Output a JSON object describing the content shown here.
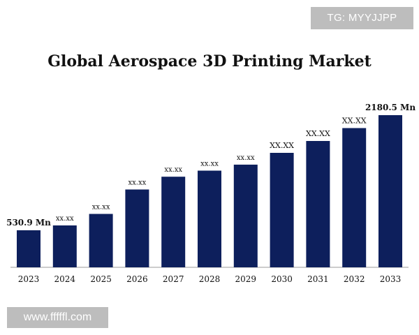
{
  "watermarks": {
    "top": "TG: MYYJJPP",
    "bottom": "www.fffffl.com"
  },
  "chart_data": {
    "type": "bar",
    "title": "Global Aerospace 3D Printing Market",
    "xlabel": "",
    "ylabel": "",
    "categories": [
      "2023",
      "2024",
      "2025",
      "2026",
      "2027",
      "2028",
      "2029",
      "2030",
      "2031",
      "2032",
      "2033"
    ],
    "values": [
      530.9,
      600,
      765,
      1115,
      1298,
      1385,
      1471,
      1640,
      1810,
      1995,
      2180.5
    ],
    "data_labels": [
      "530.9 Mn",
      "xx.xx",
      "xx.xx",
      "xx.xx",
      "xx.xx",
      "xx.xx",
      "xx.xx",
      "XX.XX",
      "XX.XX",
      "XX.XX",
      "2180.5 Mn"
    ],
    "ylim": [
      0,
      2180.5
    ],
    "grid": false,
    "legend": "none",
    "bar_color": "#0d1f5c"
  }
}
